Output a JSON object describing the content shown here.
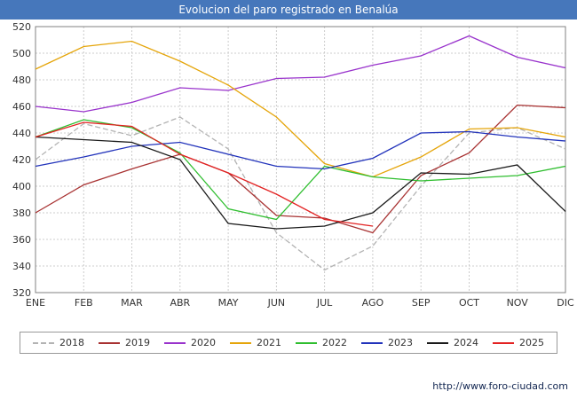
{
  "header": {
    "title": "Evolucion del paro registrado en Benalúa",
    "bg_color": "#4677bb"
  },
  "footer": {
    "url": "http://www.foro-ciudad.com"
  },
  "chart_data": {
    "type": "line",
    "title": "Evolucion del paro registrado en Benalúa",
    "categories": [
      "ENE",
      "FEB",
      "MAR",
      "ABR",
      "MAY",
      "JUN",
      "JUL",
      "AGO",
      "SEP",
      "OCT",
      "NOV",
      "DIC"
    ],
    "ylim": [
      320,
      520
    ],
    "ytick_step": 20,
    "grid": true,
    "legend_position": "bottom",
    "series": [
      {
        "name": "2018",
        "color": "#b3b3b3",
        "dash": "dashed",
        "values": [
          420,
          447,
          438,
          452,
          428,
          365,
          337,
          355,
          400,
          440,
          444,
          428
        ]
      },
      {
        "name": "2019",
        "color": "#a83232",
        "dash": "solid",
        "values": [
          380,
          401,
          413,
          424,
          410,
          378,
          376,
          365,
          408,
          425,
          461,
          459
        ]
      },
      {
        "name": "2020",
        "color": "#9933cc",
        "dash": "solid",
        "values": [
          460,
          456,
          463,
          474,
          472,
          481,
          482,
          491,
          498,
          513,
          497,
          489
        ]
      },
      {
        "name": "2021",
        "color": "#e5a50a",
        "dash": "solid",
        "values": [
          488,
          505,
          509,
          494,
          476,
          452,
          417,
          407,
          422,
          443,
          444,
          437
        ]
      },
      {
        "name": "2022",
        "color": "#2fbe2f",
        "dash": "solid",
        "values": [
          437,
          450,
          444,
          425,
          383,
          375,
          415,
          407,
          404,
          406,
          408,
          415
        ]
      },
      {
        "name": "2023",
        "color": "#2233bb",
        "dash": "solid",
        "values": [
          415,
          422,
          430,
          433,
          424,
          415,
          413,
          421,
          440,
          441,
          437,
          434
        ]
      },
      {
        "name": "2024",
        "color": "#1a1a1a",
        "dash": "solid",
        "values": [
          437,
          435,
          433,
          420,
          372,
          368,
          370,
          380,
          410,
          409,
          416,
          381
        ]
      },
      {
        "name": "2025",
        "color": "#e32222",
        "dash": "solid",
        "values": [
          437,
          448,
          445,
          424,
          410,
          394,
          375,
          370,
          null,
          null,
          null,
          null
        ]
      }
    ]
  }
}
